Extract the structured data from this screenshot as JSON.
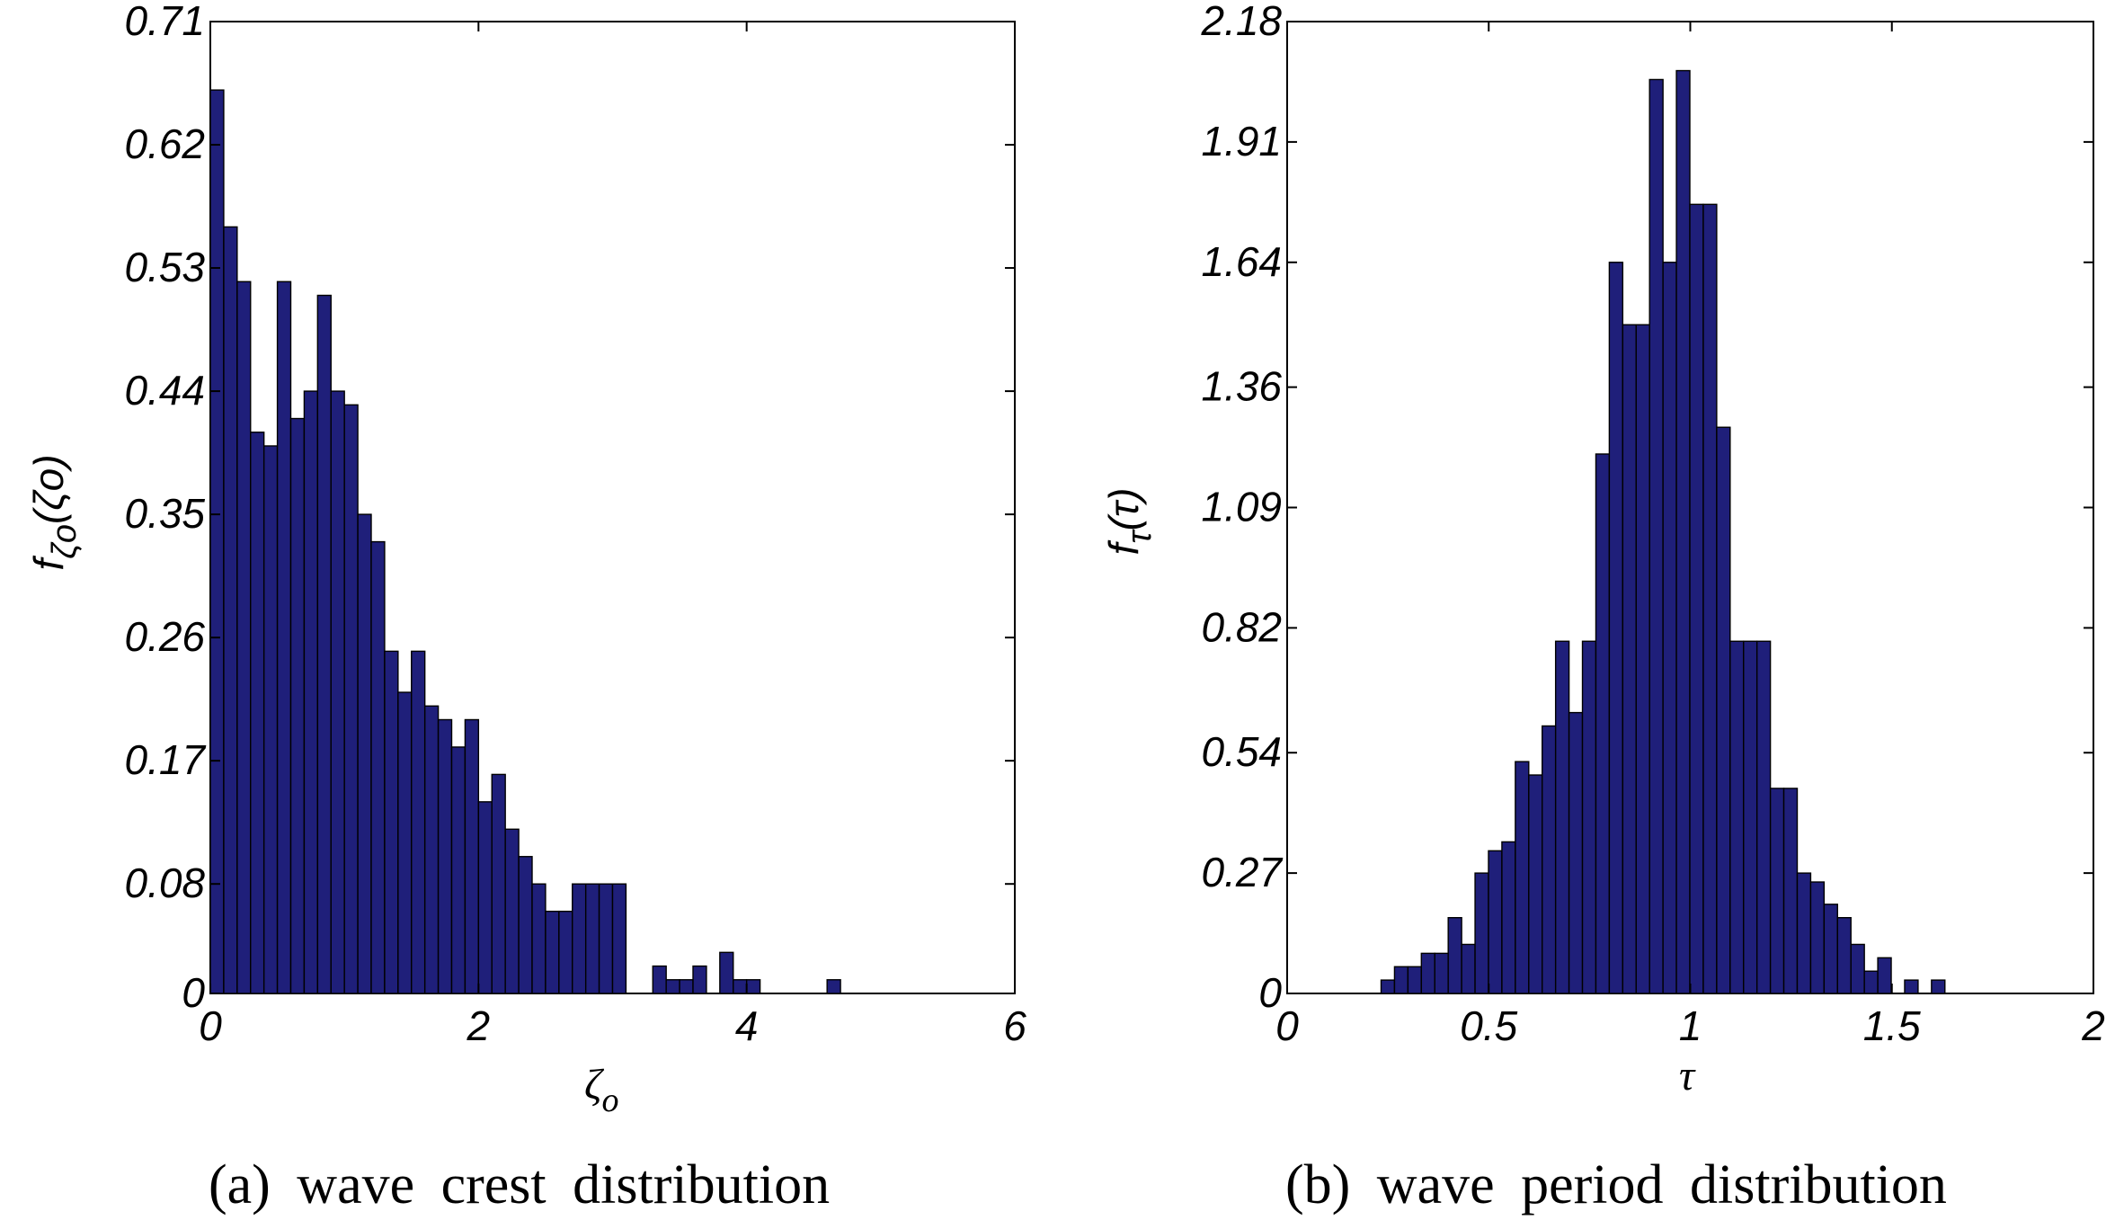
{
  "bar_color": "#1f1f7a",
  "bar_edge_color": "#000000",
  "chart_data": [
    {
      "type": "bar",
      "panel": "a",
      "caption": "(a)  wave  crest  distribution",
      "xlabel": "ζo",
      "xlabel_main": "ζ",
      "xlabel_sub": "o",
      "ylabel": "fζo(ζo)",
      "ylabel_f": "f",
      "ylabel_sub": "ζo",
      "ylabel_arg": "(ζo)",
      "xlim": [
        0,
        6
      ],
      "ylim": [
        0,
        0.71
      ],
      "xticks": [
        0,
        2,
        4,
        6
      ],
      "xtick_labels": [
        "0",
        "2",
        "4",
        "6"
      ],
      "yticks": [
        0,
        0.08,
        0.17,
        0.26,
        0.35,
        0.44,
        0.53,
        0.62,
        0.71
      ],
      "ytick_labels": [
        "0",
        "0.08",
        "0.17",
        "0.26",
        "0.35",
        "0.44",
        "0.53",
        "0.62",
        "0.71"
      ],
      "bin_start": 0,
      "bin_width": 0.1,
      "values": [
        0.66,
        0.56,
        0.52,
        0.41,
        0.4,
        0.52,
        0.42,
        0.44,
        0.51,
        0.44,
        0.43,
        0.35,
        0.33,
        0.25,
        0.22,
        0.25,
        0.21,
        0.2,
        0.18,
        0.2,
        0.14,
        0.16,
        0.12,
        0.1,
        0.08,
        0.06,
        0.06,
        0.08,
        0.08,
        0.08,
        0.08,
        0.0,
        0.0,
        0.02,
        0.01,
        0.01,
        0.02,
        0.0,
        0.03,
        0.01,
        0.01,
        0.0,
        0.0,
        0.0,
        0.0,
        0.0,
        0.01
      ]
    },
    {
      "type": "bar",
      "panel": "b",
      "caption": "(b)  wave  period  distribution",
      "xlabel": "τ",
      "ylabel": "fτ(τ)",
      "ylabel_f": "f",
      "ylabel_sub": "τ",
      "ylabel_arg": "(τ)",
      "xlim": [
        0,
        2
      ],
      "ylim": [
        0,
        2.18
      ],
      "xticks": [
        0,
        0.5,
        1,
        1.5,
        2
      ],
      "xtick_labels": [
        "0",
        "0.5",
        "1",
        "1.5",
        "2"
      ],
      "yticks": [
        0,
        0.27,
        0.54,
        0.82,
        1.09,
        1.36,
        1.64,
        1.91,
        2.18
      ],
      "ytick_labels": [
        "0",
        "0.27",
        "0.54",
        "0.82",
        "1.09",
        "1.36",
        "1.64",
        "1.91",
        "2.18"
      ],
      "bin_start": 0.233,
      "bin_width": 0.0333,
      "values": [
        0.03,
        0.06,
        0.06,
        0.09,
        0.09,
        0.17,
        0.11,
        0.27,
        0.32,
        0.34,
        0.52,
        0.49,
        0.6,
        0.79,
        0.63,
        0.79,
        1.21,
        1.64,
        1.5,
        1.5,
        2.05,
        1.64,
        2.07,
        1.77,
        1.77,
        1.27,
        0.79,
        0.79,
        0.79,
        0.46,
        0.46,
        0.27,
        0.25,
        0.2,
        0.17,
        0.11,
        0.05,
        0.08,
        0.0,
        0.03,
        0.0,
        0.03
      ]
    }
  ]
}
